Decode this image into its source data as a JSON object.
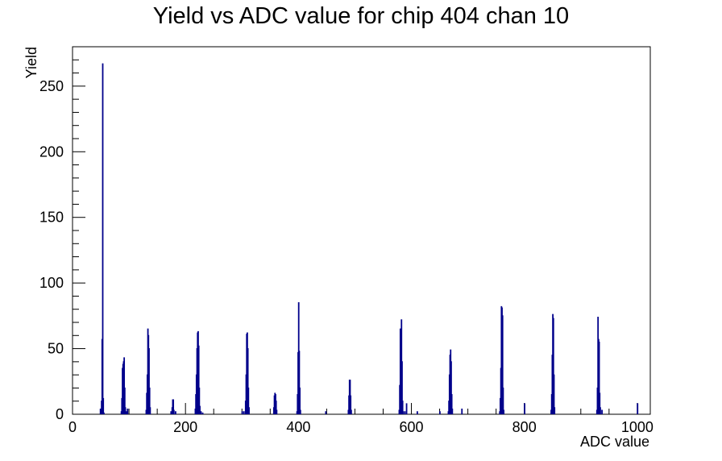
{
  "chart_data": {
    "type": "histogram",
    "title": "Yield vs ADC value for chip 404 chan 10",
    "xlabel": "ADC value",
    "ylabel": "Yield",
    "xlim": [
      0,
      1023
    ],
    "ylim": [
      0,
      280
    ],
    "x_ticks": [
      0,
      200,
      400,
      600,
      800,
      1000
    ],
    "y_ticks": [
      0,
      50,
      100,
      150,
      200,
      250
    ],
    "grid": false,
    "legend": "none",
    "line_color": "#00008b",
    "bins": [
      {
        "x": 49,
        "y": 4
      },
      {
        "x": 50,
        "y": 0
      },
      {
        "x": 51,
        "y": 10
      },
      {
        "x": 52,
        "y": 57
      },
      {
        "x": 53,
        "y": 267
      },
      {
        "x": 54,
        "y": 12
      },
      {
        "x": 55,
        "y": 1
      },
      {
        "x": 86,
        "y": 2
      },
      {
        "x": 87,
        "y": 12
      },
      {
        "x": 88,
        "y": 35
      },
      {
        "x": 89,
        "y": 38
      },
      {
        "x": 90,
        "y": 40
      },
      {
        "x": 91,
        "y": 43
      },
      {
        "x": 92,
        "y": 20
      },
      {
        "x": 93,
        "y": 5
      },
      {
        "x": 95,
        "y": 2
      },
      {
        "x": 97,
        "y": 4
      },
      {
        "x": 130,
        "y": 3
      },
      {
        "x": 131,
        "y": 16
      },
      {
        "x": 132,
        "y": 30
      },
      {
        "x": 133,
        "y": 65
      },
      {
        "x": 134,
        "y": 60
      },
      {
        "x": 135,
        "y": 50
      },
      {
        "x": 136,
        "y": 20
      },
      {
        "x": 137,
        "y": 5
      },
      {
        "x": 174,
        "y": 2
      },
      {
        "x": 175,
        "y": 1
      },
      {
        "x": 176,
        "y": 5
      },
      {
        "x": 177,
        "y": 11
      },
      {
        "x": 178,
        "y": 11
      },
      {
        "x": 179,
        "y": 3
      },
      {
        "x": 182,
        "y": 2
      },
      {
        "x": 217,
        "y": 4
      },
      {
        "x": 218,
        "y": 15
      },
      {
        "x": 219,
        "y": 30
      },
      {
        "x": 220,
        "y": 50
      },
      {
        "x": 221,
        "y": 62
      },
      {
        "x": 222,
        "y": 63
      },
      {
        "x": 223,
        "y": 52
      },
      {
        "x": 224,
        "y": 20
      },
      {
        "x": 225,
        "y": 6
      },
      {
        "x": 227,
        "y": 2
      },
      {
        "x": 230,
        "y": 1
      },
      {
        "x": 300,
        "y": 2
      },
      {
        "x": 303,
        "y": 2
      },
      {
        "x": 306,
        "y": 10
      },
      {
        "x": 307,
        "y": 30
      },
      {
        "x": 308,
        "y": 61
      },
      {
        "x": 309,
        "y": 62
      },
      {
        "x": 310,
        "y": 50
      },
      {
        "x": 311,
        "y": 20
      },
      {
        "x": 312,
        "y": 5
      },
      {
        "x": 356,
        "y": 5
      },
      {
        "x": 357,
        "y": 14
      },
      {
        "x": 358,
        "y": 16
      },
      {
        "x": 359,
        "y": 15
      },
      {
        "x": 360,
        "y": 10
      },
      {
        "x": 361,
        "y": 3
      },
      {
        "x": 397,
        "y": 2
      },
      {
        "x": 398,
        "y": 15
      },
      {
        "x": 399,
        "y": 47
      },
      {
        "x": 400,
        "y": 85
      },
      {
        "x": 401,
        "y": 48
      },
      {
        "x": 402,
        "y": 20
      },
      {
        "x": 403,
        "y": 3
      },
      {
        "x": 448,
        "y": 2
      },
      {
        "x": 488,
        "y": 3
      },
      {
        "x": 489,
        "y": 14
      },
      {
        "x": 490,
        "y": 26
      },
      {
        "x": 491,
        "y": 26
      },
      {
        "x": 492,
        "y": 14
      },
      {
        "x": 493,
        "y": 3
      },
      {
        "x": 578,
        "y": 3
      },
      {
        "x": 579,
        "y": 22
      },
      {
        "x": 580,
        "y": 65
      },
      {
        "x": 581,
        "y": 52
      },
      {
        "x": 582,
        "y": 72
      },
      {
        "x": 583,
        "y": 40
      },
      {
        "x": 584,
        "y": 10
      },
      {
        "x": 585,
        "y": 2
      },
      {
        "x": 588,
        "y": 2
      },
      {
        "x": 591,
        "y": 8
      },
      {
        "x": 610,
        "y": 2
      },
      {
        "x": 650,
        "y": 2
      },
      {
        "x": 665,
        "y": 2
      },
      {
        "x": 666,
        "y": 10
      },
      {
        "x": 667,
        "y": 30
      },
      {
        "x": 668,
        "y": 45
      },
      {
        "x": 669,
        "y": 49
      },
      {
        "x": 670,
        "y": 40
      },
      {
        "x": 671,
        "y": 15
      },
      {
        "x": 672,
        "y": 4
      },
      {
        "x": 689,
        "y": 4
      },
      {
        "x": 756,
        "y": 2
      },
      {
        "x": 757,
        "y": 12
      },
      {
        "x": 758,
        "y": 35
      },
      {
        "x": 759,
        "y": 82
      },
      {
        "x": 760,
        "y": 81
      },
      {
        "x": 761,
        "y": 75
      },
      {
        "x": 762,
        "y": 20
      },
      {
        "x": 763,
        "y": 3
      },
      {
        "x": 800,
        "y": 8
      },
      {
        "x": 847,
        "y": 3
      },
      {
        "x": 848,
        "y": 15
      },
      {
        "x": 849,
        "y": 45
      },
      {
        "x": 850,
        "y": 76
      },
      {
        "x": 851,
        "y": 73
      },
      {
        "x": 852,
        "y": 30
      },
      {
        "x": 853,
        "y": 5
      },
      {
        "x": 928,
        "y": 3
      },
      {
        "x": 929,
        "y": 20
      },
      {
        "x": 930,
        "y": 74
      },
      {
        "x": 931,
        "y": 57
      },
      {
        "x": 932,
        "y": 55
      },
      {
        "x": 933,
        "y": 16
      },
      {
        "x": 934,
        "y": 5
      },
      {
        "x": 937,
        "y": 3
      },
      {
        "x": 1000,
        "y": 8
      }
    ]
  }
}
